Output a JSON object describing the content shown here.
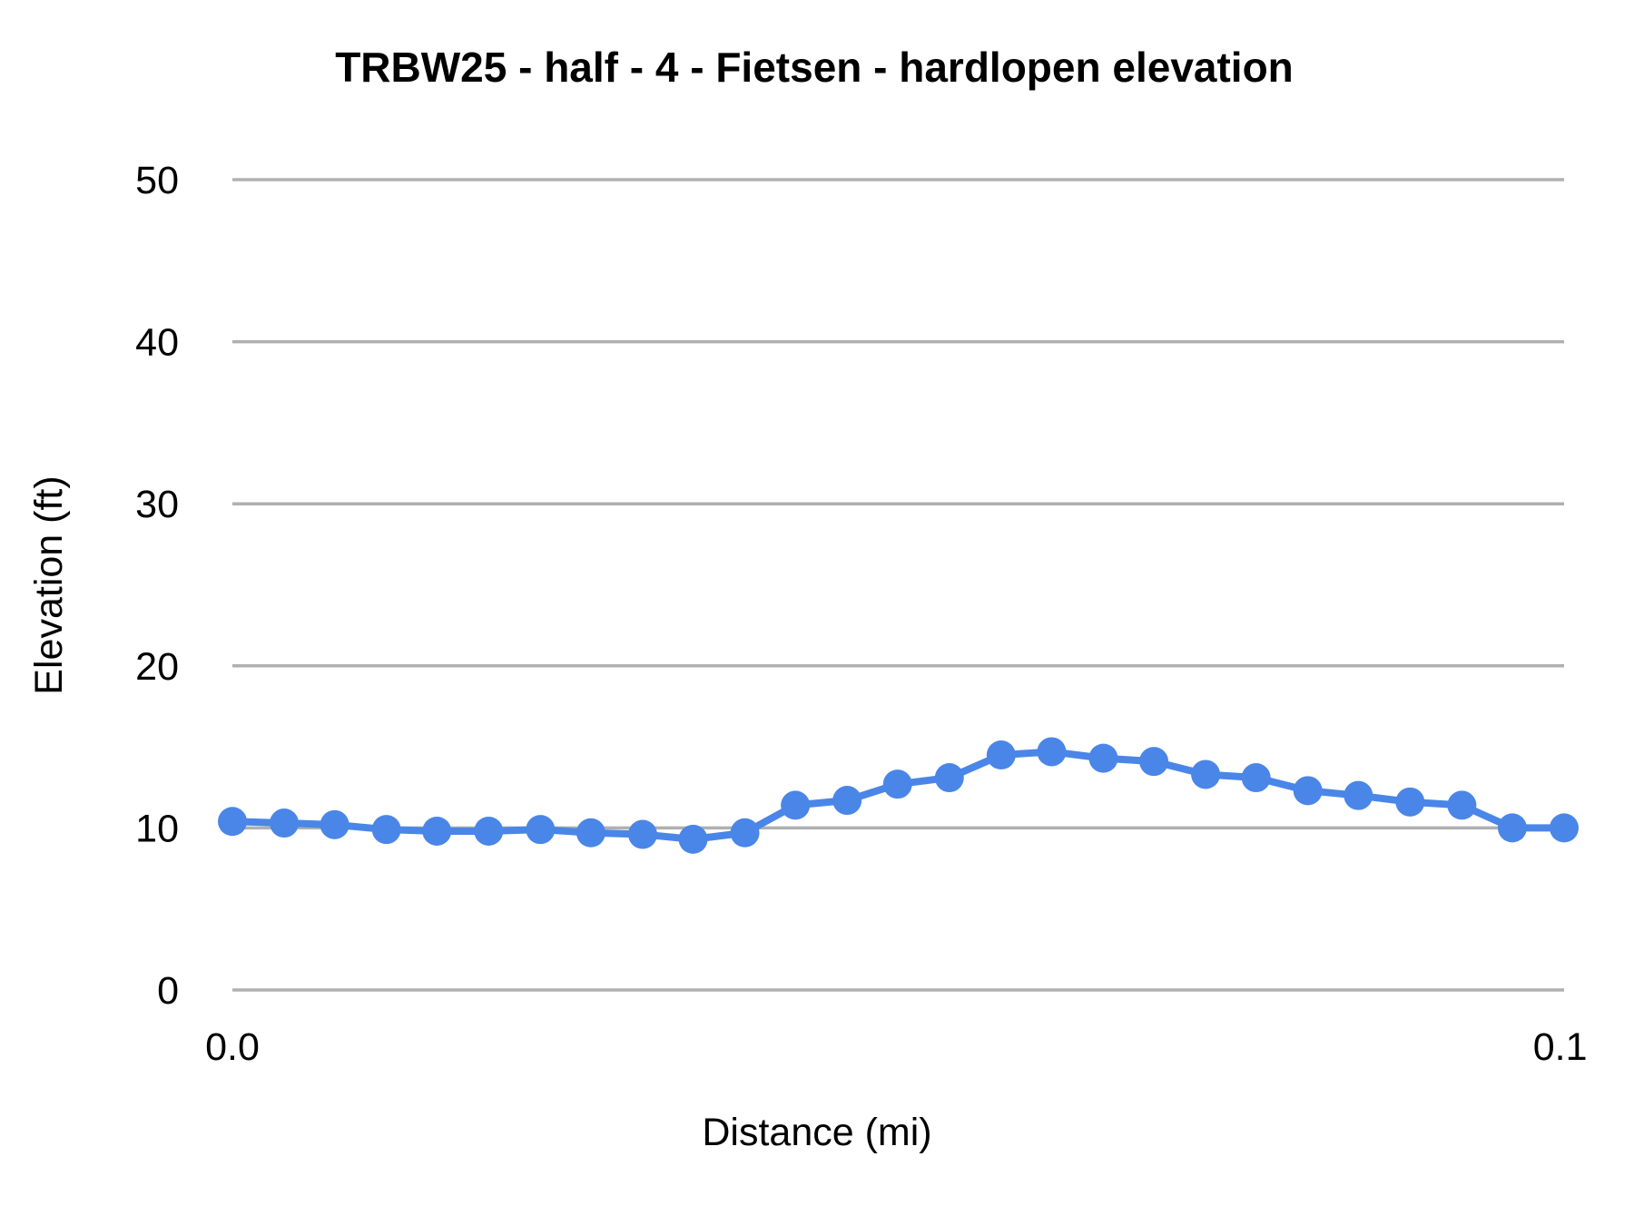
{
  "chart_data": {
    "type": "line",
    "title": "TRBW25 - half - 4 - Fietsen - hardlopen elevation",
    "xlabel": "Distance (mi)",
    "ylabel": "Elevation (ft)",
    "series_name": "elevation",
    "x": [
      0.0,
      0.0039,
      0.0077,
      0.0116,
      0.0154,
      0.0193,
      0.0232,
      0.027,
      0.0309,
      0.0347,
      0.0386,
      0.0424,
      0.0463,
      0.0501,
      0.054,
      0.0579,
      0.0617,
      0.0656,
      0.0694,
      0.0733,
      0.0771,
      0.081,
      0.0848,
      0.0887,
      0.0926,
      0.0964,
      0.1003
    ],
    "y": [
      10.4,
      10.3,
      10.2,
      9.9,
      9.8,
      9.8,
      9.9,
      9.7,
      9.6,
      9.3,
      9.7,
      11.4,
      11.7,
      12.7,
      13.1,
      14.5,
      14.7,
      14.3,
      14.1,
      13.3,
      13.1,
      12.3,
      12.0,
      11.6,
      11.4,
      10.0,
      10.0
    ],
    "ylim": [
      0,
      50
    ],
    "yticks": [
      0,
      10,
      20,
      30,
      40,
      50
    ],
    "ytick_labels": [
      "0",
      "10",
      "20",
      "30",
      "40",
      "50"
    ],
    "xticks": [
      0.0,
      0.1
    ],
    "xtick_labels": [
      "0.0",
      "0.1"
    ],
    "grid": "horizontal",
    "legend": "none",
    "marker": "filled-circle",
    "line_color": "#4a86e8",
    "gridline_color": "#b0b0b0",
    "text_color": "#000000",
    "background_color": "#ffffff"
  }
}
